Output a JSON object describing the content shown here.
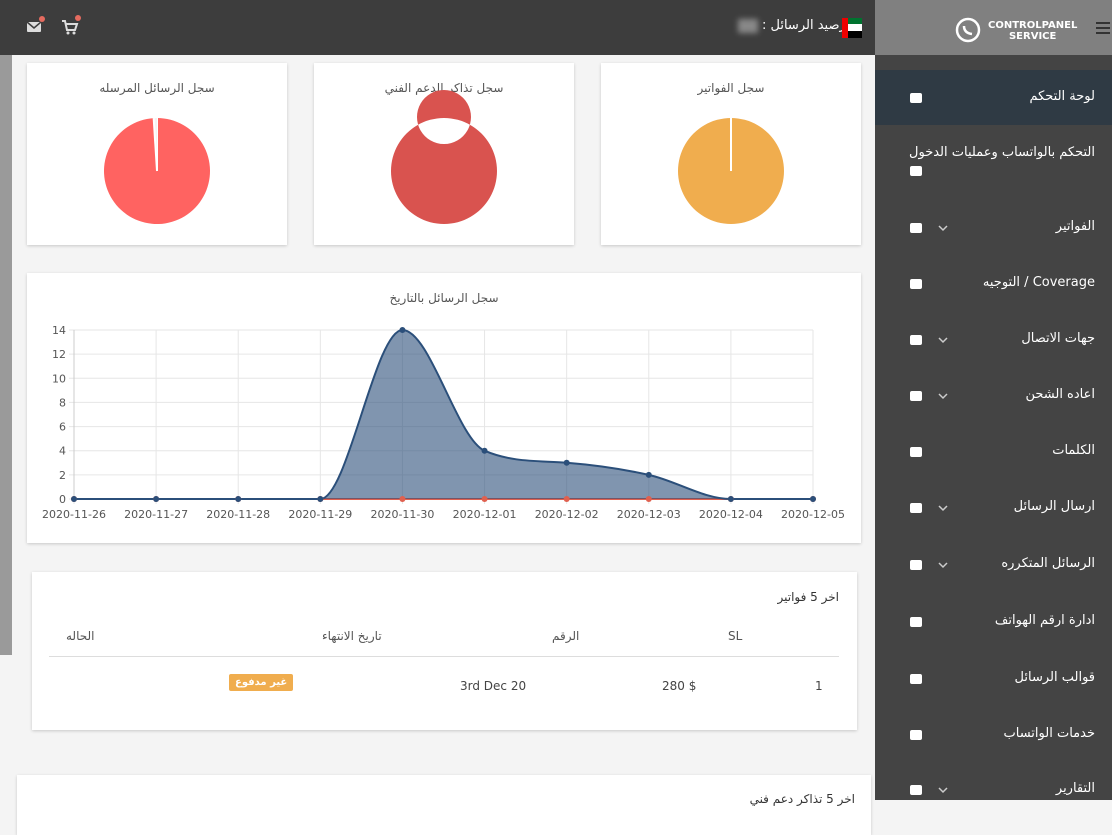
{
  "header": {
    "balance_label": "رصيد الرسائل :"
  },
  "sidebar": {
    "logo_line1": "CONTROLPANEL",
    "logo_line2": "SERVICE",
    "items": [
      "لوحة التحكم",
      "التحكم بالواتساب وعمليات الدخول",
      "الفواتير",
      "Coverage / التوجيه",
      "جهات الاتصال",
      "اعاده الشحن",
      "الكلمات",
      "ارسال الرسائل",
      "الرسائل المتكرره",
      "ادارة ارقم الهواتف",
      "قوالب الرسائل",
      "خدمات الواتساب",
      "التقارير"
    ]
  },
  "chart_data": [
    {
      "type": "pie",
      "title": "سجل الرسائل المرسله",
      "values": [
        99,
        1
      ],
      "colors": [
        "#ff6361",
        "#f4f4f4"
      ]
    },
    {
      "type": "doughnut",
      "title": "سجل تذاكر الدعم الفني",
      "values": [
        1
      ],
      "colors": [
        "#d9534f"
      ]
    },
    {
      "type": "pie",
      "title": "سجل الفواتير",
      "values": [
        1
      ],
      "colors": [
        "#f0ad4e"
      ]
    },
    {
      "type": "line",
      "title": "سجل الرسائل بالتاريخ",
      "categories": [
        "2020-11-26",
        "2020-11-27",
        "2020-11-28",
        "2020-11-29",
        "2020-11-30",
        "2020-12-01",
        "2020-12-02",
        "2020-12-03",
        "2020-12-04",
        "2020-12-05"
      ],
      "series": [
        {
          "color": "#e0604f",
          "values": [
            0,
            0,
            0,
            0,
            0,
            0,
            0,
            0,
            0,
            0
          ]
        },
        {
          "color": "#2b4f7a",
          "fill": "rgba(43,79,122,0.6)",
          "values": [
            0,
            0,
            0,
            0,
            14,
            4,
            3,
            2,
            0,
            0
          ]
        }
      ],
      "ylim": [
        0,
        14
      ],
      "yticks": [
        0,
        2,
        4,
        6,
        8,
        10,
        12,
        14
      ],
      "grid": true
    }
  ],
  "table": {
    "title": "اخر 5 فواتير",
    "headers": [
      "SL",
      "الرقم",
      "تاريخ الانتهاء",
      "الحاله"
    ],
    "rows": [
      [
        "1",
        "280 $",
        "3rd Dec 20",
        "غير مدفوع"
      ]
    ]
  },
  "next_card": {
    "title": "اخر 5 تذاكر دعم فني"
  }
}
